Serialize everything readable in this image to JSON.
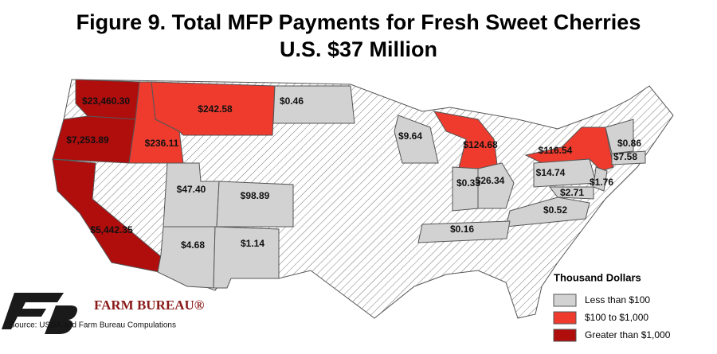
{
  "title": {
    "line1": "Figure 9. Total MFP Payments for Fresh Sweet Cherries",
    "line2": "U.S. $37 Million"
  },
  "states": [
    {
      "label": "$23,460.30",
      "value": 23460.3,
      "color": "#b00d0d"
    },
    {
      "label": "$7,253.89",
      "value": 7253.89,
      "color": "#b00d0d"
    },
    {
      "label": "$5,442.35",
      "value": 5442.35,
      "color": "#b00d0d"
    },
    {
      "label": "$242.58",
      "value": 242.58,
      "color": "#ee3b2e"
    },
    {
      "label": "$236.11",
      "value": 236.11,
      "color": "#ee3b2e"
    },
    {
      "label": "$0.46",
      "value": 0.46,
      "color": "#d2d2d2"
    },
    {
      "label": "$47.40",
      "value": 47.4,
      "color": "#d2d2d2"
    },
    {
      "label": "$98.89",
      "value": 98.89,
      "color": "#d2d2d2"
    },
    {
      "label": "$4.68",
      "value": 4.68,
      "color": "#d2d2d2"
    },
    {
      "label": "$1.14",
      "value": 1.14,
      "color": "#d2d2d2"
    },
    {
      "label": "$9.64",
      "value": 9.64,
      "color": "#d2d2d2"
    },
    {
      "label": "$124.68",
      "value": 124.68,
      "color": "#ee3b2e"
    },
    {
      "label": "$0.33",
      "value": 0.33,
      "color": "#d2d2d2"
    },
    {
      "label": "$26.34",
      "value": 26.34,
      "color": "#d2d2d2"
    },
    {
      "label": "$116.54",
      "value": 116.54,
      "color": "#ee3b2e"
    },
    {
      "label": "$14.74",
      "value": 14.74,
      "color": "#d2d2d2"
    },
    {
      "label": "$0.86",
      "value": 0.86,
      "color": "#d2d2d2"
    },
    {
      "label": "$7.58",
      "value": 7.58,
      "color": "#d2d2d2"
    },
    {
      "label": "$1.76",
      "value": 1.76,
      "color": "#d2d2d2"
    },
    {
      "label": "$2.71",
      "value": 2.71,
      "color": "#d2d2d2"
    },
    {
      "label": "$0.52",
      "value": 0.52,
      "color": "#d2d2d2"
    },
    {
      "label": "$0.16",
      "value": 0.16,
      "color": "#d2d2d2"
    }
  ],
  "legend": {
    "title": "Thousand Dollars",
    "items": [
      {
        "label": "Less than $100",
        "color": "#d2d2d2"
      },
      {
        "label": "$100 to $1,000",
        "color": "#ee3b2e"
      },
      {
        "label": "Greater than $1,000",
        "color": "#b00d0d"
      }
    ]
  },
  "logo": "FARM BUREAU®",
  "source": "Source: USDA and Farm Bureau Compulations"
}
